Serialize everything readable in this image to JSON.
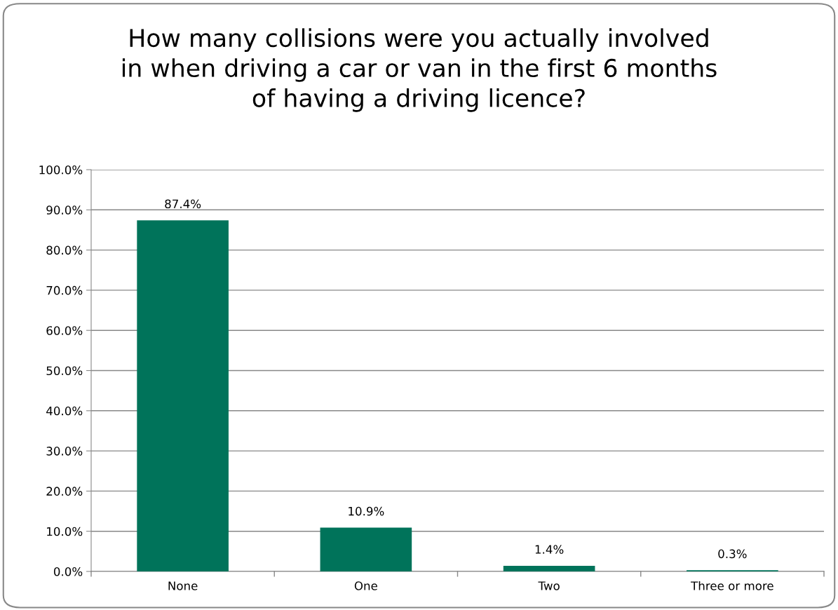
{
  "chart_data": {
    "type": "bar",
    "title": "How many collisions were you actually involved\nin when driving a car or van in the first 6 months\nof having a driving licence?",
    "categories": [
      "None",
      "One",
      "Two",
      "Three or more"
    ],
    "values": [
      87.4,
      10.9,
      1.4,
      0.3
    ],
    "value_labels": [
      "87.4%",
      "10.9%",
      "1.4%",
      "0.3%"
    ],
    "color": "#00735a",
    "ylim": [
      0,
      100
    ],
    "yticks": [
      {
        "value": 0,
        "label": "0.0%"
      },
      {
        "value": 10,
        "label": "10.0%"
      },
      {
        "value": 20,
        "label": "20.0%"
      },
      {
        "value": 30,
        "label": "30.0%"
      },
      {
        "value": 40,
        "label": "40.0%"
      },
      {
        "value": 50,
        "label": "50.0%"
      },
      {
        "value": 60,
        "label": "60.0%"
      },
      {
        "value": 70,
        "label": "70.0%"
      },
      {
        "value": 80,
        "label": "80.0%"
      },
      {
        "value": 90,
        "label": "90.0%"
      },
      {
        "value": 100,
        "label": "100.0%"
      }
    ],
    "grid": "y",
    "legend": false
  }
}
